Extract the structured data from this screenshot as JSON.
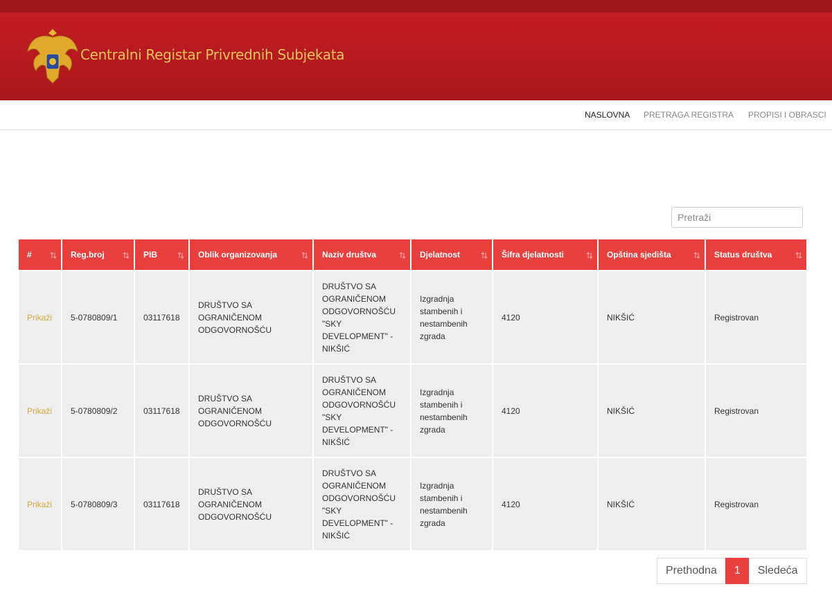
{
  "header": {
    "title": "Centralni Registar Privrednih Subjekata"
  },
  "nav": [
    "NASLOVNA",
    "PRETRAGA REGISTRA",
    "PROPISI I OBRASCI"
  ],
  "search": {
    "placeholder": "Pretraži"
  },
  "table": {
    "headers": [
      "#",
      "Reg.broj",
      "PIB",
      "Oblik organizovanja",
      "Naziv društva",
      "Djelatnost",
      "Šifra djelatnosti",
      "Opština sjedišta",
      "Status društva"
    ],
    "rows": [
      [
        "Prikaži",
        "5-0780809/1",
        "03117618",
        "DRUŠTVO SA OGRANIČENOM ODGOVORNOŠĆU",
        "DRUŠTVO SA OGRANIČENOM ODGOVORNOŠĆU \"SKY DEVELOPMENT\" - NIKŠIĆ",
        "Izgradnja stambenih i nestambenih zgrada",
        "4120",
        "NIKŠIĆ",
        "Registrovan"
      ],
      [
        "Prikaži",
        "5-0780809/2",
        "03117618",
        "DRUŠTVO SA OGRANIČENOM ODGOVORNOŠĆU",
        "DRUŠTVO SA OGRANIČENOM ODGOVORNOŠĆU \"SKY DEVELOPMENT\" - NIKŠIĆ",
        "Izgradnja stambenih i nestambenih zgrada",
        "4120",
        "NIKŠIĆ",
        "Registrovan"
      ],
      [
        "Prikaži",
        "5-0780809/3",
        "03117618",
        "DRUŠTVO SA OGRANIČENOM ODGOVORNOŠĆU",
        "DRUŠTVO SA OGRANIČENOM ODGOVORNOŠĆU \"SKY DEVELOPMENT\" - NIKŠIĆ",
        "Izgradnja stambenih i nestambenih zgrada",
        "4120",
        "NIKŠIĆ",
        "Registrovan"
      ]
    ]
  },
  "pagination": {
    "previous": "Prethodna",
    "current": "1",
    "next": "Sledeća"
  }
}
